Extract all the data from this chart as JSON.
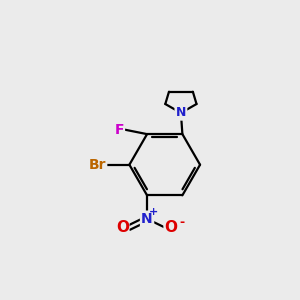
{
  "background_color": "#ebebeb",
  "bond_color": "#000000",
  "atom_colors": {
    "N": "#2020cc",
    "F": "#cc00cc",
    "Br": "#bb6600",
    "O": "#dd0000"
  },
  "figsize": [
    3.0,
    3.0
  ],
  "dpi": 100
}
